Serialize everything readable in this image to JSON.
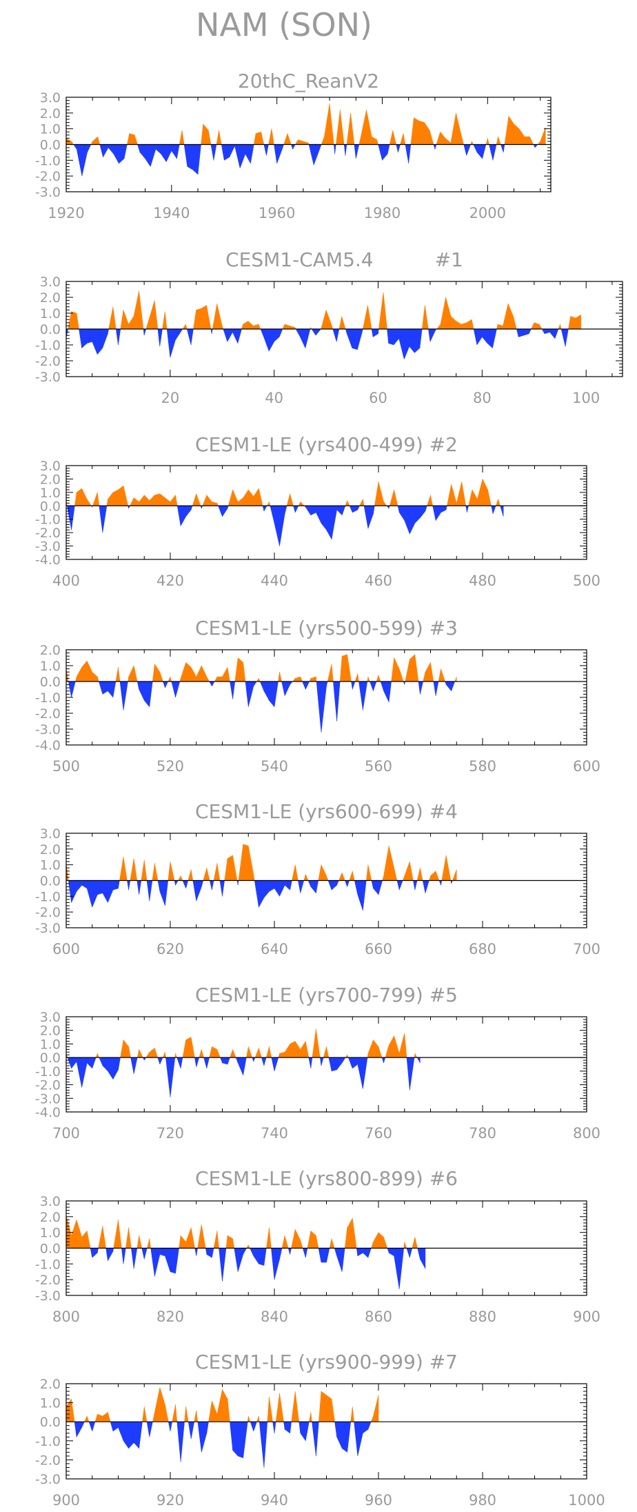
{
  "title": "NAM (SON)",
  "colors": {
    "positive": "#ff8000",
    "negative": "#1e3cff",
    "text": "#9a9a9a",
    "axis": "#000000"
  },
  "chart_data": [
    {
      "type": "area",
      "title": "20thC_ReanV2",
      "xlim": [
        1920,
        2012
      ],
      "ylim": [
        -3,
        3
      ],
      "yticks": [
        "3.0",
        "2.0",
        "1.0",
        "0.0",
        "-1.0",
        "-2.0",
        "-3.0"
      ],
      "xticks": [
        "1920",
        "1940",
        "1960",
        "1980",
        "2000"
      ],
      "x_start": 1920,
      "values": [
        0.4,
        0.2,
        -0.3,
        -2.0,
        -0.5,
        0.2,
        0.5,
        -0.8,
        -0.2,
        -0.6,
        -1.2,
        -0.9,
        0.7,
        0.6,
        -0.5,
        -0.9,
        -1.4,
        -0.3,
        -0.6,
        -1.1,
        -0.4,
        -0.9,
        0.9,
        -1.4,
        -1.6,
        -1.9,
        1.3,
        0.9,
        -1.0,
        0.9,
        -1.0,
        -0.8,
        -0.1,
        -1.5,
        -0.6,
        -1.2,
        0.7,
        0.8,
        -0.7,
        1.0,
        -1.2,
        -0.3,
        0.7,
        -0.3,
        0.3,
        0.2,
        0.1,
        -1.3,
        -0.4,
        0.5,
        2.6,
        -0.6,
        2.2,
        -0.7,
        2.0,
        -0.9,
        0.6,
        2.2,
        0.5,
        0.3,
        -1.0,
        -0.6,
        0.9,
        -0.5,
        0.7,
        -1.2,
        1.7,
        1.5,
        1.4,
        0.9,
        -0.3,
        0.8,
        0.4,
        0.1,
        2.0,
        0.6,
        -0.7,
        0.2,
        -0.5,
        -0.9,
        0.4,
        -1.0,
        0.5,
        -0.5,
        1.8,
        1.3,
        1.0,
        0.5,
        0.5,
        -0.2,
        0.2,
        1.1
      ]
    },
    {
      "type": "area",
      "title": "CESM1-CAM5.4          #1",
      "xlim": [
        0,
        107
      ],
      "ylim": [
        -3,
        3
      ],
      "yticks": [
        "3.0",
        "2.0",
        "1.0",
        "0.0",
        "-1.0",
        "-2.0",
        "-3.0"
      ],
      "xticks": [
        "20",
        "40",
        "60",
        "80",
        "100"
      ],
      "x_start": 0,
      "values": [
        -0.6,
        1.1,
        1.0,
        -1.2,
        -0.9,
        -0.8,
        -1.6,
        -1.2,
        -0.3,
        1.4,
        -1.0,
        1.2,
        0.3,
        0.8,
        2.4,
        -0.4,
        0.7,
        1.8,
        -1.1,
        1.1,
        -1.8,
        -0.7,
        -0.2,
        0.3,
        -1.0,
        1.2,
        1.3,
        1.5,
        -0.3,
        1.6,
        0.2,
        -0.8,
        -0.2,
        -0.9,
        0.3,
        0.5,
        0.2,
        0.3,
        -0.5,
        -1.4,
        -0.8,
        -0.5,
        0.3,
        0.2,
        0.1,
        -0.5,
        -1.2,
        0.1,
        -0.4,
        0.0,
        1.2,
        0.3,
        -0.8,
        0.8,
        -0.3,
        -1.2,
        -1.3,
        -0.1,
        1.5,
        -0.5,
        -0.3,
        2.3,
        -0.9,
        -1.0,
        -0.6,
        -1.9,
        -1.1,
        -1.5,
        -1.2,
        1.5,
        -0.8,
        -0.1,
        0.3,
        2.0,
        0.8,
        0.5,
        0.3,
        0.4,
        0.6,
        -1.0,
        -0.5,
        -0.9,
        -1.2,
        0.3,
        0.2,
        1.6,
        0.8,
        -0.5,
        -0.4,
        -0.3,
        0.4,
        0.3,
        -0.3,
        -0.2,
        -0.6,
        0.3,
        -1.1,
        0.8,
        0.7,
        0.9
      ]
    },
    {
      "type": "area",
      "title": "CESM1-LE (yrs400-499) #2",
      "xlim": [
        400,
        500
      ],
      "ylim": [
        -4,
        3
      ],
      "yticks": [
        "3.0",
        "2.0",
        "1.0",
        "0.0",
        "-1.0",
        "-2.0",
        "-3.0",
        "-4.0"
      ],
      "xticks": [
        "400",
        "420",
        "440",
        "460",
        "480",
        "500"
      ],
      "x_start": 400,
      "values": [
        0.4,
        -1.8,
        1.0,
        1.3,
        0.5,
        -0.1,
        1.0,
        -2.0,
        0.5,
        1.0,
        1.2,
        1.5,
        -0.2,
        0.6,
        0.3,
        0.8,
        0.4,
        0.8,
        0.9,
        0.6,
        0.3,
        0.8,
        -1.5,
        -0.8,
        -0.3,
        0.9,
        -0.2,
        0.8,
        0.3,
        0.2,
        -0.8,
        -0.2,
        1.2,
        0.3,
        0.6,
        1.2,
        0.7,
        1.3,
        -0.4,
        0.3,
        -1.3,
        -3.0,
        -0.6,
        0.9,
        -0.5,
        0.3,
        -0.1,
        -0.7,
        -0.5,
        -1.3,
        -1.8,
        -2.5,
        -0.3,
        -0.7,
        0.4,
        -0.5,
        -0.3,
        0.5,
        -1.7,
        -0.6,
        1.8,
        0.3,
        -0.2,
        1.2,
        -0.5,
        -1.1,
        -2.1,
        -1.3,
        -0.9,
        -0.4,
        0.8,
        -1.1,
        -0.5,
        -0.3,
        1.6,
        0.2,
        1.8,
        -0.5,
        1.2,
        0.5,
        2.0,
        1.2,
        -0.6,
        0.5,
        -0.8
      ]
    },
    {
      "type": "area",
      "title": "CESM1-LE (yrs500-599) #3",
      "xlim": [
        500,
        600
      ],
      "ylim": [
        -4,
        2
      ],
      "yticks": [
        "2.0",
        "1.0",
        "0.0",
        "-1.0",
        "-2.0",
        "-3.0",
        "-4.0"
      ],
      "xticks": [
        "500",
        "520",
        "540",
        "560",
        "580",
        "600"
      ],
      "x_start": 500,
      "values": [
        0.8,
        -1.0,
        0.3,
        0.9,
        1.3,
        0.6,
        0.3,
        -0.8,
        -0.6,
        -1.0,
        0.9,
        -1.8,
        0.3,
        1.0,
        -0.5,
        -1.2,
        -1.6,
        1.1,
        0.6,
        -0.4,
        0.3,
        -1.0,
        0.2,
        1.2,
        0.9,
        0.3,
        1.0,
        0.3,
        -0.3,
        0.3,
        0.3,
        0.9,
        -1.1,
        1.5,
        1.2,
        -1.6,
        -0.3,
        0.2,
        -0.6,
        -1.2,
        -1.6,
        0.6,
        -0.9,
        -0.2,
        0.2,
        0.3,
        -0.5,
        0.2,
        0.3,
        -3.2,
        -0.3,
        1.1,
        -2.5,
        1.6,
        1.7,
        -0.5,
        0.5,
        -1.8,
        0.3,
        -0.6,
        0.4,
        -0.6,
        -1.3,
        1.5,
        0.8,
        -0.2,
        1.4,
        1.7,
        -0.8,
        0.6,
        1.2,
        -0.9,
        0.8,
        -0.2,
        -0.6,
        0.3
      ]
    },
    {
      "type": "area",
      "title": "CESM1-LE (yrs600-699) #4",
      "xlim": [
        600,
        700
      ],
      "ylim": [
        -3,
        3
      ],
      "yticks": [
        "3.0",
        "2.0",
        "1.0",
        "0.0",
        "-1.0",
        "-2.0",
        "-3.0"
      ],
      "xticks": [
        "600",
        "620",
        "640",
        "660",
        "680",
        "700"
      ],
      "x_start": 600,
      "values": [
        1.1,
        -1.4,
        -0.7,
        -0.3,
        -0.5,
        -1.7,
        -0.9,
        -0.8,
        -1.4,
        -0.6,
        -0.5,
        1.5,
        -0.6,
        1.4,
        -0.9,
        1.3,
        -1.3,
        1.1,
        -0.7,
        -1.6,
        1.2,
        -0.3,
        0.3,
        -0.5,
        0.7,
        -1.3,
        -0.4,
        0.8,
        -0.6,
        1.1,
        -1.0,
        1.4,
        1.6,
        -0.3,
        2.3,
        2.2,
        0.4,
        -1.7,
        -1.1,
        -0.7,
        -0.5,
        -1.0,
        -0.3,
        -0.6,
        1.0,
        -0.8,
        0.4,
        -0.4,
        -0.8,
        1.0,
        0.3,
        -0.6,
        -0.3,
        0.5,
        -0.4,
        0.6,
        -0.9,
        -1.9,
        1.0,
        -0.5,
        -0.9,
        0.3,
        2.2,
        0.8,
        -0.6,
        0.3,
        1.2,
        -0.6,
        0.8,
        -0.8,
        0.3,
        0.6,
        -0.3,
        1.6,
        -0.2,
        0.7
      ]
    },
    {
      "type": "area",
      "title": "CESM1-LE (yrs700-799) #5",
      "xlim": [
        700,
        800
      ],
      "ylim": [
        -4,
        3
      ],
      "yticks": [
        "3.0",
        "2.0",
        "1.0",
        "0.0",
        "-1.0",
        "-2.0",
        "-3.0",
        "-4.0"
      ],
      "xticks": [
        "700",
        "720",
        "740",
        "760",
        "780",
        "800"
      ],
      "x_start": 700,
      "values": [
        0.3,
        -0.8,
        -0.3,
        -2.2,
        -0.4,
        -0.8,
        0.3,
        -0.6,
        -1.0,
        -1.6,
        -0.9,
        1.3,
        0.8,
        -1.2,
        0.6,
        -0.2,
        0.4,
        0.7,
        -0.5,
        0.4,
        -2.9,
        0.3,
        -0.8,
        1.3,
        1.5,
        -0.7,
        0.6,
        -0.8,
        0.8,
        0.6,
        -0.4,
        -0.5,
        0.6,
        -0.4,
        -1.3,
        0.8,
        -0.3,
        0.7,
        -0.6,
        0.8,
        -1.0,
        0.3,
        0.4,
        1.0,
        1.2,
        0.6,
        1.2,
        -0.8,
        2.1,
        -0.6,
        0.8,
        -1.0,
        -0.9,
        -0.4,
        0.2,
        -0.8,
        -0.5,
        -2.3,
        0.3,
        1.3,
        0.8,
        -0.4,
        0.9,
        1.6,
        0.3,
        1.8,
        -2.4,
        0.3,
        -0.4
      ]
    },
    {
      "type": "area",
      "title": "CESM1-LE (yrs800-899) #6",
      "xlim": [
        800,
        900
      ],
      "ylim": [
        -3,
        3
      ],
      "yticks": [
        "3.0",
        "2.0",
        "1.0",
        "0.0",
        "-1.0",
        "-2.0",
        "-3.0"
      ],
      "xticks": [
        "800",
        "820",
        "840",
        "860",
        "880",
        "900"
      ],
      "x_start": 800,
      "values": [
        2.1,
        0.8,
        1.8,
        0.7,
        1.1,
        -0.6,
        -0.3,
        1.4,
        -0.8,
        -0.2,
        1.8,
        -1.0,
        1.3,
        -1.3,
        0.8,
        -0.7,
        0.6,
        -1.8,
        -0.4,
        -0.5,
        -1.5,
        -1.6,
        0.8,
        0.4,
        1.3,
        -0.5,
        1.5,
        -0.4,
        -0.6,
        1.1,
        -2.1,
        0.8,
        0.6,
        -1.5,
        -0.4,
        0.2,
        -0.5,
        -1.0,
        -1.1,
        1.3,
        -2.0,
        -0.7,
        0.8,
        -0.4,
        1.2,
        0.5,
        -0.6,
        1.1,
        0.8,
        -0.9,
        -0.9,
        0.6,
        -0.5,
        -1.5,
        1.3,
        1.9,
        -0.5,
        -0.3,
        -0.6,
        0.4,
        1.0,
        0.7,
        -0.3,
        -0.5,
        -2.6,
        0.4,
        -0.6,
        0.7,
        -0.7,
        -1.3
      ]
    },
    {
      "type": "area",
      "title": "CESM1-LE (yrs900-999) #7",
      "xlim": [
        900,
        1000
      ],
      "ylim": [
        -3,
        2
      ],
      "yticks": [
        "2.0",
        "1.0",
        "0.0",
        "-1.0",
        "-2.0",
        "-3.0"
      ],
      "xticks": [
        "900",
        "920",
        "940",
        "960",
        "980",
        "1000"
      ],
      "x_start": 900,
      "values": [
        0.8,
        1.2,
        -0.8,
        -0.3,
        0.3,
        -0.5,
        0.4,
        0.3,
        0.5,
        -0.5,
        -0.3,
        -1.0,
        -1.4,
        -1.1,
        -1.4,
        0.8,
        -0.8,
        0.5,
        1.8,
        0.9,
        -0.5,
        0.9,
        -2.1,
        0.8,
        -0.9,
        0.6,
        -1.6,
        -0.6,
        1.1,
        0.4,
        1.7,
        1.2,
        -1.5,
        -1.8,
        -1.9,
        0.3,
        -0.5,
        0.3,
        -2.4,
        1.3,
        -0.6,
        1.5,
        -0.4,
        -0.6,
        1.6,
        -0.6,
        -1.0,
        0.5,
        -1.8,
        1.6,
        1.4,
        1.2,
        -0.8,
        -1.4,
        -1.6,
        0.8,
        -1.8,
        -0.6,
        -0.4,
        0.3,
        1.4
      ]
    }
  ]
}
